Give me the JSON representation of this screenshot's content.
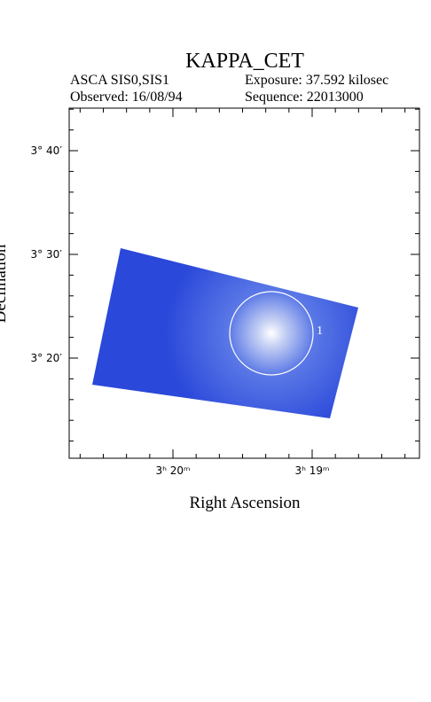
{
  "header": {
    "title": "KAPPA_CET",
    "instrument": "ASCA SIS0,SIS1",
    "exposure": "Exposure: 37.592 kilosec",
    "observed": "Observed: 16/08/94",
    "sequence": "Sequence: 22013000"
  },
  "plot": {
    "x_label": "Right Ascension",
    "y_label": "Declination",
    "x_tick_labels": [
      "3ʰ 20ᵐ",
      "3ʰ 19ᵐ"
    ],
    "y_tick_labels": [
      "3° 40′",
      "3° 30′",
      "3° 20′"
    ],
    "source_label": "1"
  }
}
